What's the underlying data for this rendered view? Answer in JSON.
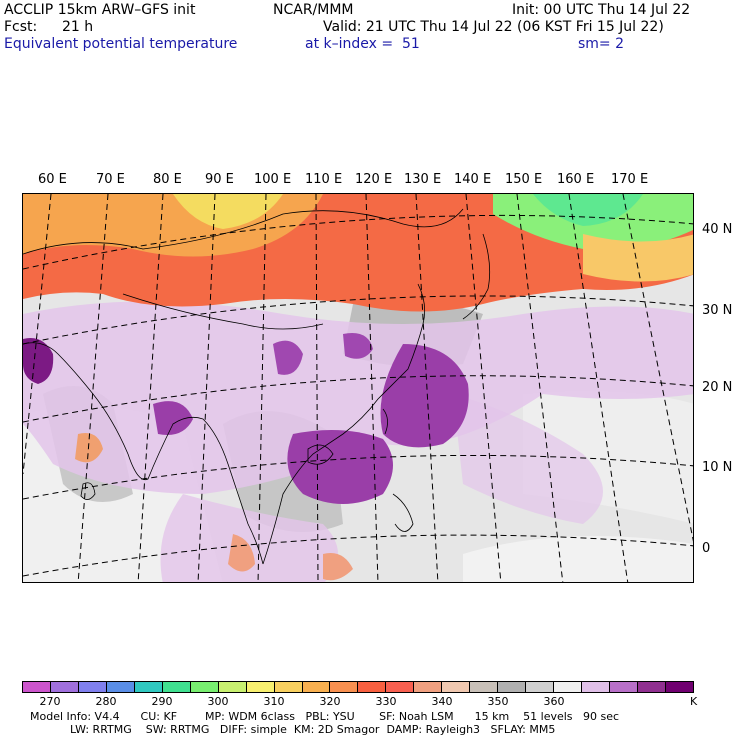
{
  "header": {
    "model": "ACCLIP 15km ARW–GFS init",
    "org": "NCAR/MMM",
    "init": "Init: 00 UTC Thu 14 Jul 22",
    "fcst_label": "Fcst:",
    "fcst_value": "21 h",
    "valid": "Valid: 21 UTC Thu 14 Jul 22 (06 KST Fri 15 Jul 22)",
    "field": "Equivalent potential temperature",
    "level": "at k–index =  51",
    "smooth": "sm= 2"
  },
  "map": {
    "lon_labels": [
      "60 E",
      "70 E",
      "80 E",
      "90 E",
      "100 E",
      "110 E",
      "120 E",
      "130 E",
      "140 E",
      "150 E",
      "160 E",
      "170 E"
    ],
    "lat_labels": [
      "40 N",
      "30 N",
      "20 N",
      "10 N",
      "0"
    ]
  },
  "colorbar": {
    "unit": "K",
    "colors": [
      "#cc55cc",
      "#a070dd",
      "#8080ee",
      "#5a8ee6",
      "#30c8c0",
      "#40e090",
      "#78ee70",
      "#c8f070",
      "#f8f070",
      "#f8d060",
      "#f8b050",
      "#f89050",
      "#f86040",
      "#f86050",
      "#f0a080",
      "#f0c8b0",
      "#c8c0b8",
      "#b0b0b0",
      "#d0d0d0",
      "#f0f0f0",
      "#e0c0e8",
      "#b870c8",
      "#903090",
      "#700070"
    ],
    "labels": [
      "270",
      "280",
      "290",
      "300",
      "310",
      "320",
      "330",
      "340",
      "350",
      "360"
    ]
  },
  "footer": {
    "line1": "Model Info: V4.4      CU: KF        MP: WDM 6class   PBL: YSU       SF: Noah LSM      15 km    51 levels   90 sec",
    "line2": "LW: RRTMG    SW: RRTMG   DIFF: simple  KM: 2D Smagor  DAMP: Rayleigh3   SFLAY: MM5"
  }
}
